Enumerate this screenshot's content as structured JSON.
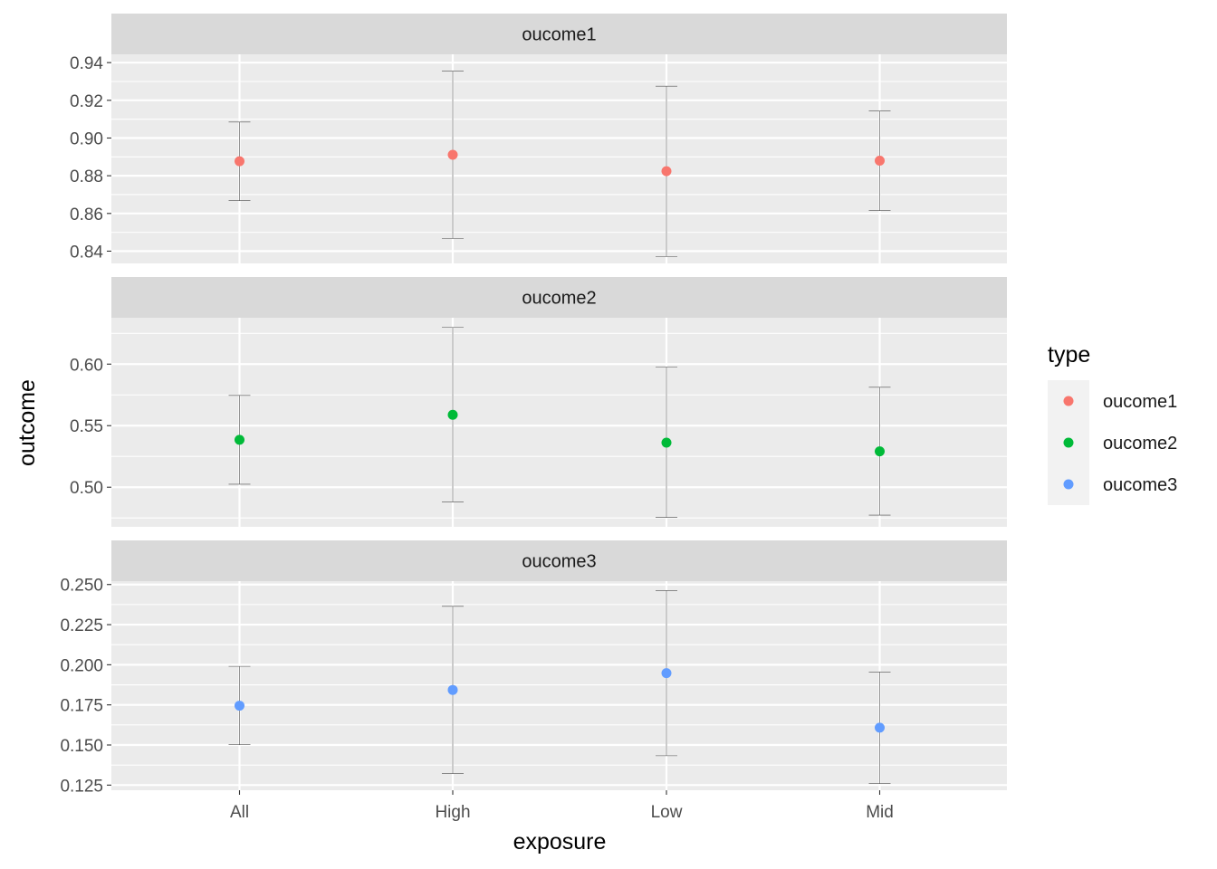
{
  "chart_data": {
    "type": "scatter",
    "xlabel": "exposure",
    "ylabel": "outcome",
    "categories": [
      "All",
      "High",
      "Low",
      "Mid"
    ],
    "grid": true,
    "legend": {
      "title": "type",
      "placement": "right",
      "entries": [
        {
          "name": "oucome1",
          "color": "#F8766D"
        },
        {
          "name": "oucome2",
          "color": "#00BA38"
        },
        {
          "name": "oucome3",
          "color": "#619CFF"
        }
      ]
    },
    "panels": [
      {
        "strip": "oucome1",
        "series": "oucome1",
        "color": "#F8766D",
        "ylim": [
          0.8335,
          0.9444
        ],
        "yticks": [
          0.84,
          0.86,
          0.88,
          0.9,
          0.92,
          0.94
        ],
        "ytick_labels": [
          "0.84",
          "0.86",
          "0.88",
          "0.90",
          "0.92",
          "0.94"
        ],
        "points": [
          {
            "x": "All",
            "y": 0.8877,
            "lower": 0.8668,
            "upper": 0.9085
          },
          {
            "x": "High",
            "y": 0.8911,
            "lower": 0.8467,
            "upper": 0.9355
          },
          {
            "x": "Low",
            "y": 0.8824,
            "lower": 0.8371,
            "upper": 0.9275
          },
          {
            "x": "Mid",
            "y": 0.888,
            "lower": 0.8615,
            "upper": 0.9143
          }
        ]
      },
      {
        "strip": "oucome2",
        "series": "oucome2",
        "color": "#00BA38",
        "ylim": [
          0.4678,
          0.6377
        ],
        "yticks": [
          0.5,
          0.55,
          0.6
        ],
        "ytick_labels": [
          "0.50",
          "0.55",
          "0.60"
        ],
        "points": [
          {
            "x": "All",
            "y": 0.5385,
            "lower": 0.5024,
            "upper": 0.5746
          },
          {
            "x": "High",
            "y": 0.5588,
            "lower": 0.488,
            "upper": 0.6298
          },
          {
            "x": "Low",
            "y": 0.5362,
            "lower": 0.4754,
            "upper": 0.5977
          },
          {
            "x": "Mid",
            "y": 0.5291,
            "lower": 0.4773,
            "upper": 0.5812
          }
        ]
      },
      {
        "strip": "oucome3",
        "series": "oucome3",
        "color": "#619CFF",
        "ylim": [
          0.1218,
          0.2521
        ],
        "yticks": [
          0.125,
          0.15,
          0.175,
          0.2,
          0.225,
          0.25
        ],
        "ytick_labels": [
          "0.125",
          "0.150",
          "0.175",
          "0.200",
          "0.225",
          "0.250"
        ],
        "points": [
          {
            "x": "All",
            "y": 0.1745,
            "lower": 0.1502,
            "upper": 0.199
          },
          {
            "x": "High",
            "y": 0.1843,
            "lower": 0.1322,
            "upper": 0.2364
          },
          {
            "x": "Low",
            "y": 0.1948,
            "lower": 0.1433,
            "upper": 0.2463
          },
          {
            "x": "Mid",
            "y": 0.1608,
            "lower": 0.1259,
            "upper": 0.1955
          }
        ]
      }
    ]
  }
}
